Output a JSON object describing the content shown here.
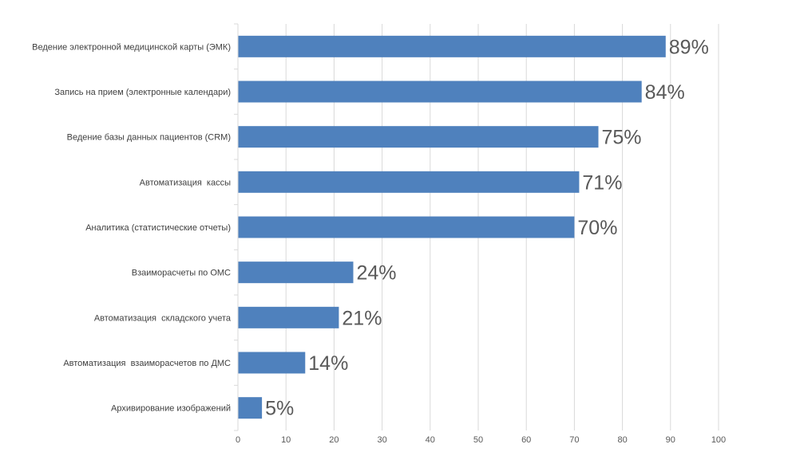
{
  "chart_data": {
    "type": "bar",
    "orientation": "horizontal",
    "categories": [
      "Ведение электронной медицинской карты (ЭМК)",
      "Запись на прием (электронные календари)",
      "Ведение базы данных пациентов (CRM)",
      "Автоматизация  кассы",
      "Аналитика (статистические отчеты)",
      "Взаиморасчеты по ОМС",
      "Автоматизация  складского учета",
      "Автоматизация  взаиморасчетов по ДМС",
      "Архивирование изображений"
    ],
    "values": [
      89,
      84,
      75,
      71,
      70,
      24,
      21,
      14,
      5
    ],
    "data_labels": [
      "89%",
      "84%",
      "75%",
      "71%",
      "70%",
      "24%",
      "21%",
      "14%",
      "5%"
    ],
    "xlim": [
      0,
      100
    ],
    "x_ticks": [
      "0",
      "10",
      "20",
      "30",
      "40",
      "50",
      "60",
      "70",
      "80",
      "90",
      "100"
    ],
    "grid": "vertical",
    "bar_color": "#4F81BD",
    "title": "",
    "xlabel": "",
    "ylabel": ""
  }
}
